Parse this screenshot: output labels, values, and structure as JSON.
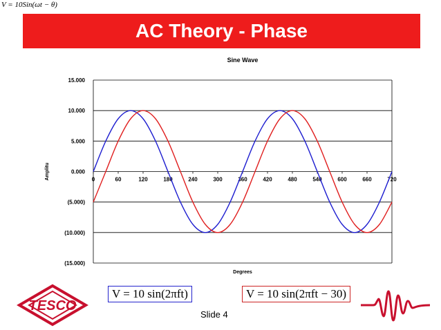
{
  "header": {
    "formula": "V = 10Sin(ωt − θ)",
    "title": "AC Theory - Phase"
  },
  "chart_data": {
    "type": "line",
    "title": "Sine Wave",
    "xlabel": "Degrees",
    "ylabel": "Amplitu",
    "xlim": [
      0,
      720
    ],
    "ylim": [
      -15,
      15
    ],
    "x_ticks": [
      0,
      60,
      120,
      180,
      240,
      300,
      360,
      420,
      480,
      540,
      600,
      660,
      720
    ],
    "x_tick_labels": [
      "0",
      "60",
      "120",
      "180",
      "240",
      "300",
      "360",
      "420",
      "480",
      "540",
      "600",
      "660",
      "720"
    ],
    "y_ticks": [
      15,
      10,
      5,
      0,
      -5,
      -10,
      -15
    ],
    "y_tick_labels": [
      "15.000",
      "10.000",
      "5.000",
      "0.000",
      "(5.000)",
      "(10.000)",
      "(15.000)"
    ],
    "grid": "horizontal",
    "legend": "none",
    "series": [
      {
        "color": "#1f1fd0",
        "x": [
          0,
          30,
          60,
          90,
          120,
          150,
          180,
          210,
          240,
          270,
          300,
          330,
          360,
          390,
          420,
          450,
          480,
          510,
          540,
          570,
          600,
          630,
          660,
          690,
          720
        ],
        "values": [
          0,
          5,
          8.66,
          10,
          8.66,
          5,
          0,
          -5,
          -8.66,
          -10,
          -8.66,
          -5,
          0,
          5,
          8.66,
          10,
          8.66,
          5,
          0,
          -5,
          -8.66,
          -10,
          -8.66,
          -5,
          0
        ]
      },
      {
        "color": "#e02020",
        "x": [
          0,
          30,
          60,
          90,
          120,
          150,
          180,
          210,
          240,
          270,
          300,
          330,
          360,
          390,
          420,
          450,
          480,
          510,
          540,
          570,
          600,
          630,
          660,
          690,
          720
        ],
        "values": [
          -5,
          0,
          5,
          8.66,
          10,
          8.66,
          5,
          0,
          -5,
          -8.66,
          -10,
          -8.66,
          -5,
          0,
          5,
          8.66,
          10,
          8.66,
          5,
          0,
          -5,
          -8.66,
          -10,
          -8.66,
          -5
        ]
      }
    ]
  },
  "formulas": {
    "blue": "V = 10 sin(2πft)",
    "red": "V = 10 sin(2πft − 30)"
  },
  "footer": {
    "slide": "Slide 4",
    "logo_text": "TESCO",
    "logo_icon": "tesco-logo-icon",
    "wave_icon": "waveform-icon"
  }
}
